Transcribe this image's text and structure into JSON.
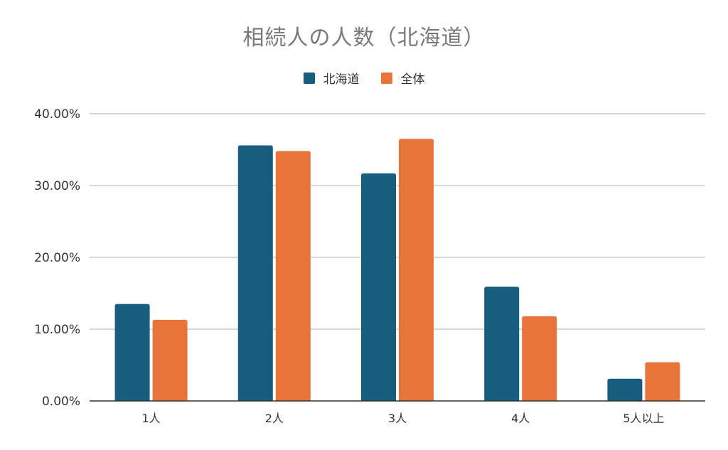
{
  "chart_data": {
    "type": "bar",
    "title": "相続人の人数（北海道）",
    "categories": [
      "1人",
      "2人",
      "3人",
      "4人",
      "5人以上"
    ],
    "series": [
      {
        "name": "北海道",
        "color": "#175d7e",
        "values": [
          13.5,
          35.6,
          31.7,
          15.9,
          3.1
        ]
      },
      {
        "name": "全体",
        "color": "#e8743b",
        "values": [
          11.3,
          34.8,
          36.5,
          11.8,
          5.4
        ]
      }
    ],
    "ylim": [
      0,
      40
    ],
    "yticks": [
      0,
      10,
      20,
      30,
      40
    ],
    "ytick_labels": [
      "0.00%",
      "10.00%",
      "20.00%",
      "30.00%",
      "40.00%"
    ],
    "grid": true,
    "legend_position": "top-center",
    "gridline_color": "#cccccc",
    "axis_color": "#333333"
  }
}
